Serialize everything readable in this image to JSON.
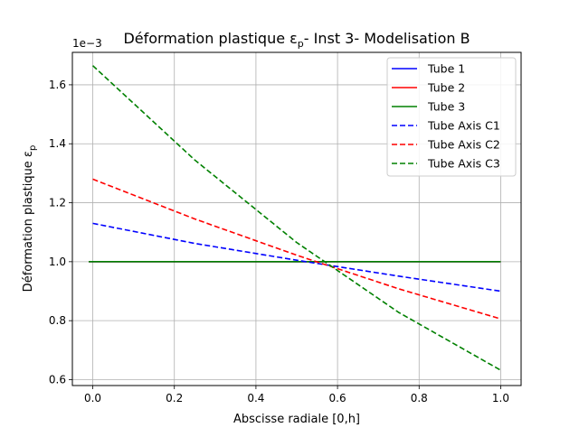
{
  "chart_data": {
    "type": "line",
    "title": "Déformation plastique ε",
    "title_sub": "p",
    "title_rest": "- Inst 3- Modelisation B",
    "xlabel": "Abscisse radiale [0,h]",
    "ylabel": "Déformation plastique ε",
    "ylabel_sub": "p",
    "y_offset_text": "1e−3",
    "xlim": [
      -0.05,
      1.05
    ],
    "ylim": [
      0.58,
      1.71
    ],
    "x_ticks": [
      0.0,
      0.2,
      0.4,
      0.6,
      0.8,
      1.0
    ],
    "x_tick_labels": [
      "0.0",
      "0.2",
      "0.4",
      "0.6",
      "0.8",
      "1.0"
    ],
    "y_ticks": [
      0.6,
      0.8,
      1.0,
      1.2,
      1.4,
      1.6
    ],
    "y_tick_labels": [
      "0.6",
      "0.8",
      "1.0",
      "1.2",
      "1.4",
      "1.6"
    ],
    "grid": true,
    "legend_position": "top-right",
    "series": [
      {
        "name": "Tube 1",
        "color": "#0000ff",
        "dash": "solid",
        "x": [
          -0.01,
          1.0
        ],
        "values": [
          1.0,
          1.0
        ]
      },
      {
        "name": "Tube 2",
        "color": "#ff0000",
        "dash": "solid",
        "x": [
          -0.01,
          1.0
        ],
        "values": [
          1.0,
          1.0
        ]
      },
      {
        "name": "Tube 3",
        "color": "#008000",
        "dash": "solid",
        "x": [
          -0.01,
          1.0
        ],
        "values": [
          1.0,
          1.0
        ]
      },
      {
        "name": "Tube Axis C1",
        "color": "#0000ff",
        "dash": "dashed",
        "x": [
          0.0,
          0.25,
          0.5,
          0.75,
          1.0
        ],
        "values": [
          1.13,
          1.062,
          1.005,
          0.951,
          0.9
        ]
      },
      {
        "name": "Tube Axis C2",
        "color": "#ff0000",
        "dash": "dashed",
        "x": [
          0.0,
          0.25,
          0.5,
          0.75,
          1.0
        ],
        "values": [
          1.28,
          1.145,
          1.022,
          0.908,
          0.806
        ]
      },
      {
        "name": "Tube Axis C3",
        "color": "#008000",
        "dash": "dashed",
        "x": [
          0.0,
          0.25,
          0.5,
          0.75,
          1.0
        ],
        "values": [
          1.665,
          1.345,
          1.065,
          0.828,
          0.632
        ]
      }
    ]
  }
}
